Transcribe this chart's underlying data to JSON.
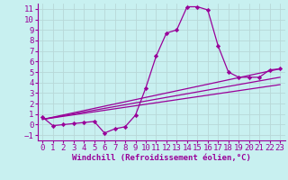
{
  "title": "",
  "xlabel": "Windchill (Refroidissement éolien,°C)",
  "ylabel": "",
  "bg_color": "#c8f0f0",
  "line_color": "#990099",
  "grid_color": "#b8d8d8",
  "xlim": [
    -0.5,
    23.5
  ],
  "ylim": [
    -1.5,
    11.5
  ],
  "xticks": [
    0,
    1,
    2,
    3,
    4,
    5,
    6,
    7,
    8,
    9,
    10,
    11,
    12,
    13,
    14,
    15,
    16,
    17,
    18,
    19,
    20,
    21,
    22,
    23
  ],
  "yticks": [
    -1,
    0,
    1,
    2,
    3,
    4,
    5,
    6,
    7,
    8,
    9,
    10,
    11
  ],
  "curve1_x": [
    0,
    1,
    2,
    3,
    4,
    5,
    6,
    7,
    8,
    9,
    10,
    11,
    12,
    13,
    14,
    15,
    16,
    17,
    18,
    19,
    20,
    21,
    22,
    23
  ],
  "curve1_y": [
    0.7,
    -0.1,
    0.0,
    0.1,
    0.2,
    0.3,
    -0.8,
    -0.4,
    -0.2,
    0.9,
    3.5,
    6.5,
    8.7,
    9.0,
    11.2,
    11.2,
    10.9,
    7.5,
    5.0,
    4.5,
    4.5,
    4.5,
    5.2,
    5.3
  ],
  "line1_x": [
    0,
    23
  ],
  "line1_y": [
    0.5,
    5.3
  ],
  "line2_x": [
    0,
    23
  ],
  "line2_y": [
    0.5,
    4.5
  ],
  "line3_x": [
    0,
    23
  ],
  "line3_y": [
    0.5,
    3.8
  ],
  "font_size_xlabel": 6.5,
  "font_size_tick": 6.5
}
